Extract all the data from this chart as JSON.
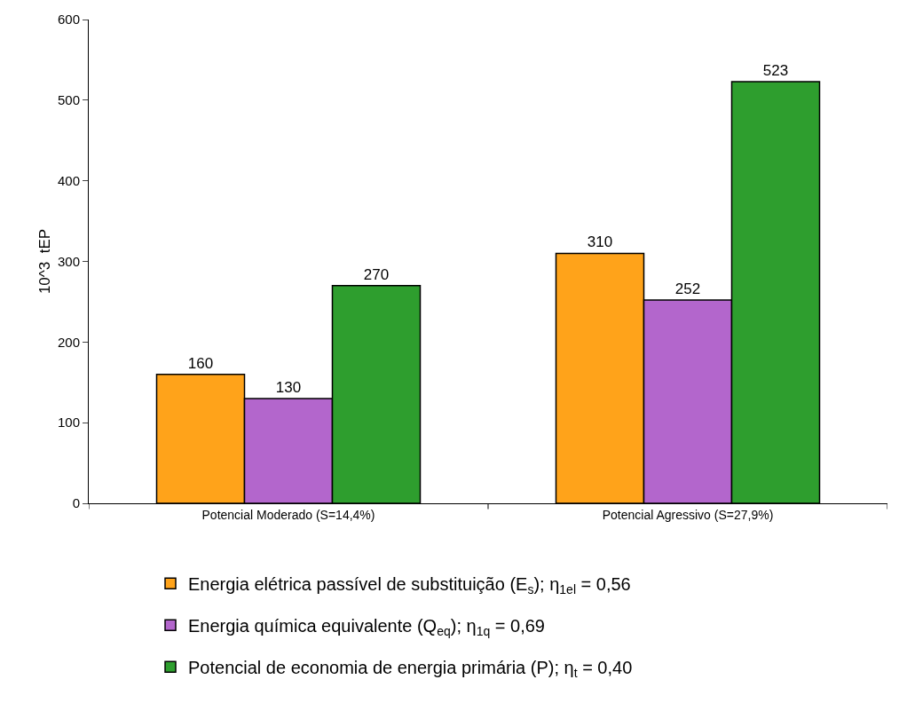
{
  "chart_data": {
    "type": "bar",
    "ylabel": "10^3  tEP",
    "categories": [
      "Potencial Moderado (S=14,4%)",
      "Potencial Agressivo (S=27,9%)"
    ],
    "series": [
      {
        "name": "Energia elétrica passível de substituição (E$_{s}$); η$_{1el}$ = 0,56",
        "color": "#ffa31a",
        "values": [
          160,
          310
        ]
      },
      {
        "name": "Energia química equivalente (Q$_{eq}$); η$_{1q}$ = 0,69",
        "color": "#b366cc",
        "values": [
          130,
          252
        ]
      },
      {
        "name": "Potencial de economia de energia primária (P); η$_{t}$ = 0,40",
        "color": "#2e9e2e",
        "values": [
          270,
          523
        ]
      }
    ],
    "ylim": [
      0,
      600
    ],
    "yticks": [
      0,
      100,
      200,
      300,
      400,
      500,
      600
    ],
    "grid": false,
    "legend": "bottom",
    "data_labels": true
  }
}
